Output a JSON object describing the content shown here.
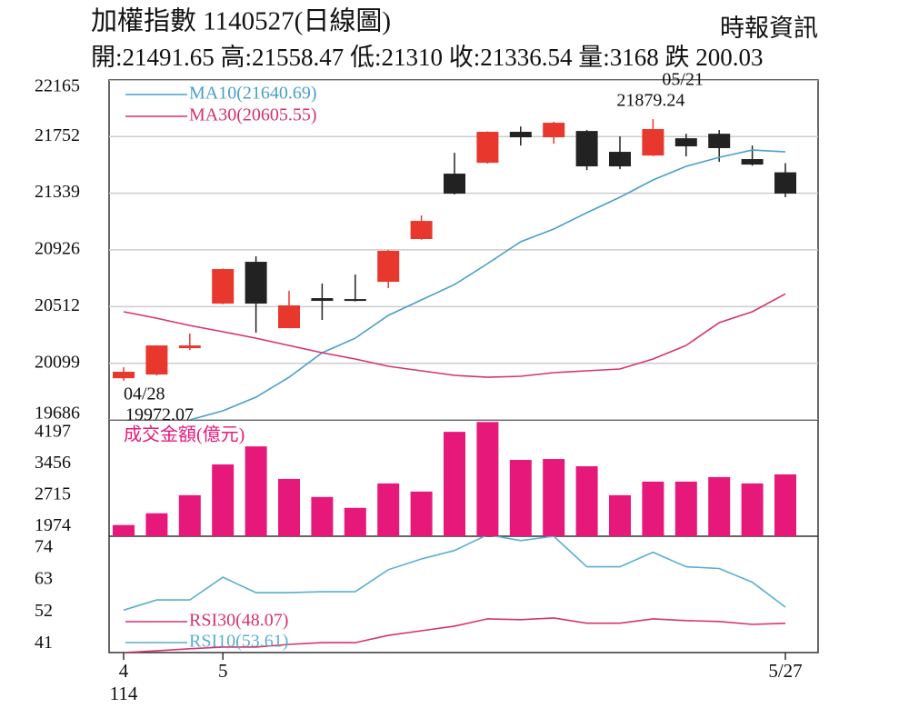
{
  "chart_data": [
    {
      "type": "candlestick",
      "title": "加權指數 1140527(日線圖)",
      "source": "時報資訊",
      "subtitle": "開:21491.65 高:21558.47 低:21310 收:21336.54 量:3168 跌 200.03",
      "categories": [
        "4",
        null,
        null,
        "5",
        null,
        null,
        null,
        null,
        null,
        null,
        null,
        null,
        null,
        null,
        null,
        null,
        null,
        null,
        null,
        null,
        "5/27"
      ],
      "x_year_label": "114",
      "open": [
        19990,
        20017,
        20209,
        20534,
        20839,
        20355,
        20574,
        20567,
        20693,
        21005,
        21482,
        21561,
        21787,
        21747,
        21793,
        21641,
        21614,
        21740,
        21773,
        21588,
        21491.65
      ],
      "high": [
        20070,
        20229,
        20316,
        20790,
        20879,
        20627,
        20680,
        20746,
        20925,
        21177,
        21634,
        21790,
        21826,
        21860,
        21800,
        21754,
        21879.24,
        21773,
        21800,
        21687,
        21558.47
      ],
      "low": [
        19972.07,
        20010,
        20196,
        20530,
        20322,
        20355,
        20415,
        20550,
        20647,
        21000,
        21330,
        21555,
        21687,
        21700,
        21508,
        21515,
        21610,
        21608,
        21568,
        21540,
        21310
      ],
      "close": [
        20037,
        20229,
        20229,
        20786,
        20534,
        20521,
        20554,
        20554,
        20919,
        21137,
        21336,
        21787,
        21747,
        21853,
        21535,
        21535,
        21807,
        21681,
        21668,
        21548,
        21336.54
      ],
      "up_color": "#e8372c",
      "down_color": "#222222",
      "series": [
        {
          "name": "MA10(21640.69)",
          "color": "#4a9fc8",
          "values": [
            null,
            null,
            19686,
            19752,
            19852,
            19997,
            20176,
            20282,
            20448,
            20561,
            20673,
            20826,
            20985,
            21078,
            21197,
            21310,
            21436,
            21535,
            21601,
            21654,
            21640.69
          ]
        },
        {
          "name": "MA30(20605.55)",
          "color": "#d6336c",
          "values": [
            20475,
            20428,
            20375,
            20329,
            20282,
            20229,
            20176,
            20130,
            20077,
            20044,
            20011,
            19997,
            20004,
            20031,
            20044,
            20057,
            20130,
            20229,
            20395,
            20475,
            20605.55
          ]
        }
      ],
      "annotations": [
        {
          "date": "04/28",
          "value": 19972.07
        },
        {
          "date": "05/21",
          "value": 21879.24
        }
      ],
      "ylim": [
        19686,
        22165
      ],
      "yticks": [
        19686,
        20099,
        20512,
        20926,
        21339,
        21752,
        22165
      ],
      "grid": true
    },
    {
      "type": "bar",
      "series": [
        {
          "name": "成交金額(億元)",
          "color": "#e6197a",
          "values": [
            2015,
            2293,
            2720,
            3447,
            3874,
            3105,
            2678,
            2421,
            2998,
            2806,
            4218,
            4450,
            3554,
            3575,
            3404,
            2720,
            3041,
            3041,
            3148,
            2998,
            3212
          ]
        }
      ],
      "ylim": [
        1750,
        4500
      ],
      "yticks": [
        1974,
        2715,
        3456,
        4197
      ],
      "grid": false
    },
    {
      "type": "line",
      "series": [
        {
          "name": "RSI30(48.07)",
          "color": "#d6336c",
          "values": [
            38,
            38.6,
            39.3,
            39.9,
            39.9,
            40.8,
            41.4,
            41.4,
            43.9,
            45.5,
            47.1,
            49.6,
            49.3,
            49.9,
            48.1,
            48.1,
            49.6,
            49,
            48.7,
            47.7,
            48.07
          ]
        },
        {
          "name": "RSI10(53.61)",
          "color": "#5aaed0",
          "values": [
            52.6,
            56.1,
            56.1,
            63.9,
            58.6,
            58.6,
            58.9,
            58.9,
            66.5,
            70.2,
            73.1,
            78.5,
            76.5,
            78,
            67.5,
            67.5,
            72.5,
            67.5,
            66.9,
            62.2,
            53.61
          ]
        }
      ],
      "ylim": [
        38,
        78
      ],
      "yticks": [
        41,
        52,
        63,
        74
      ],
      "grid": false
    }
  ]
}
